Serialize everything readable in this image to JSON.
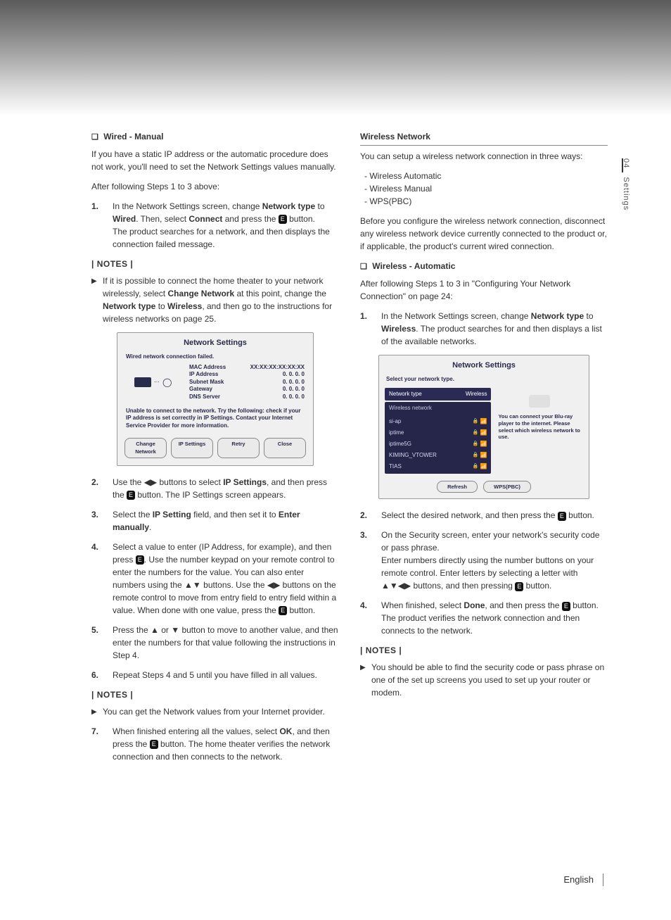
{
  "sideTab": {
    "chapter": "04",
    "label": "Settings"
  },
  "footer": {
    "lang": "English"
  },
  "left": {
    "head1": "Wired - Manual",
    "p1": "If you have a static IP address or the automatic procedure does not work, you'll need to set the Network Settings values manually.",
    "p2": "After following Steps 1 to 3 above:",
    "step1_a": "In the Network Settings screen, change ",
    "step1_b": "Network type",
    "step1_c": " to ",
    "step1_d": "Wired",
    "step1_e": ". Then, select ",
    "step1_f": "Connect",
    "step1_g": " and press the ",
    "step1_h": " button.",
    "step1_i": "The product searches for a network, and then displays the connection failed message.",
    "notesLabel": "| NOTES |",
    "note1_a": "If it is possible to connect the home theater to your network wirelessly, select ",
    "note1_b": "Change Network",
    "note1_c": " at this point, change the ",
    "note1_d": "Network type",
    "note1_e": " to ",
    "note1_f": "Wireless",
    "note1_g": ", and then go to the instructions for wireless networks on page 25.",
    "ss1": {
      "title": "Network Settings",
      "fail": "Wired network connection failed.",
      "labels": [
        "MAC Address",
        "IP Address",
        "Subnet Mask",
        "Gateway",
        "DNS Server"
      ],
      "vals": [
        "XX:XX:XX:XX:XX:XX",
        "0. 0. 0. 0",
        "0. 0. 0. 0",
        "0. 0. 0. 0",
        "0. 0. 0. 0"
      ],
      "msg": "Unable to connect to the network. Try the following: check if your IP address is set correctly in IP Settings. Contact your Internet Service Provider for more information.",
      "btns": [
        "Change Network",
        "IP Settings",
        "Retry",
        "Close"
      ]
    },
    "step2_a": "Use the ◀▶ buttons to select ",
    "step2_b": "IP Settings",
    "step2_c": ", and then press the ",
    "step2_d": " button. The IP Settings screen appears.",
    "step3_a": "Select the ",
    "step3_b": "IP Setting",
    "step3_c": " field, and then set it to ",
    "step3_d": "Enter manually",
    "step3_e": ".",
    "step4_a": "Select a value to enter (IP Address, for example), and then press ",
    "step4_b": ". Use the number keypad on your remote control to enter the numbers for the value. You can also enter numbers using the ▲▼ buttons. Use the ◀▶ buttons on the remote control to move from entry field to entry field within a value. When done with one value, press the ",
    "step4_c": " button.",
    "step5": "Press the ▲ or ▼ button to move to another value, and then enter the numbers for that value following the instructions in Step 4.",
    "step6": "Repeat Steps 4 and 5 until you have filled in all values.",
    "note2": "You can get the Network values from your Internet provider.",
    "step7_a": "When finished entering all the values, select ",
    "step7_b": "OK",
    "step7_c": ", and then press the ",
    "step7_d": " button. The home theater verifies the network connection and then connects to the network."
  },
  "right": {
    "head": "Wireless Network",
    "p1": "You can setup a wireless network connection in three ways:",
    "list": [
      "Wireless Automatic",
      "Wireless Manual",
      "WPS(PBC)"
    ],
    "p2": "Before you configure the wireless network connection, disconnect any wireless network device currently connected to the product or, if applicable, the product's current wired connection.",
    "head2": "Wireless - Automatic",
    "p3": "After following Steps 1 to 3 in \"Configuring Your Network Connection\" on page 24:",
    "step1_a": "In the Network Settings screen, change ",
    "step1_b": "Network type",
    "step1_c": " to ",
    "step1_d": "Wireless",
    "step1_e": ". The product searches for and then displays a list of the available networks.",
    "ss2": {
      "title": "Network Settings",
      "sel": "Select your network type.",
      "typeLabel": "Network type",
      "typeVal": "Wireless",
      "wlabel": "Wireless network",
      "nets": [
        "si-ap",
        "iptime",
        "iptime5G",
        "KIMING_VTOWER",
        "TIAS"
      ],
      "info": "You can connect your Blu-ray player to the internet. Please select which wireless network to use.",
      "btns": [
        "Refresh",
        "WPS(PBC)"
      ]
    },
    "step2_a": "Select the desired network, and then press the ",
    "step2_b": " button.",
    "step3_a": "On the Security screen, enter your network's security code or pass phrase.",
    "step3_b": "Enter numbers directly using the number buttons on your remote control. Enter letters by selecting a letter with ▲▼◀▶ buttons, and then pressing ",
    "step3_c": " button.",
    "step4_a": "When finished, select ",
    "step4_b": "Done",
    "step4_c": ", and then press the ",
    "step4_d": " button. The product verifies the network connection and then connects to the network.",
    "notesLabel": "| NOTES |",
    "note1": "You should be able to find the security code or pass phrase on one of the set up screens you used to set up your router or modem."
  },
  "enterGlyph": "E"
}
